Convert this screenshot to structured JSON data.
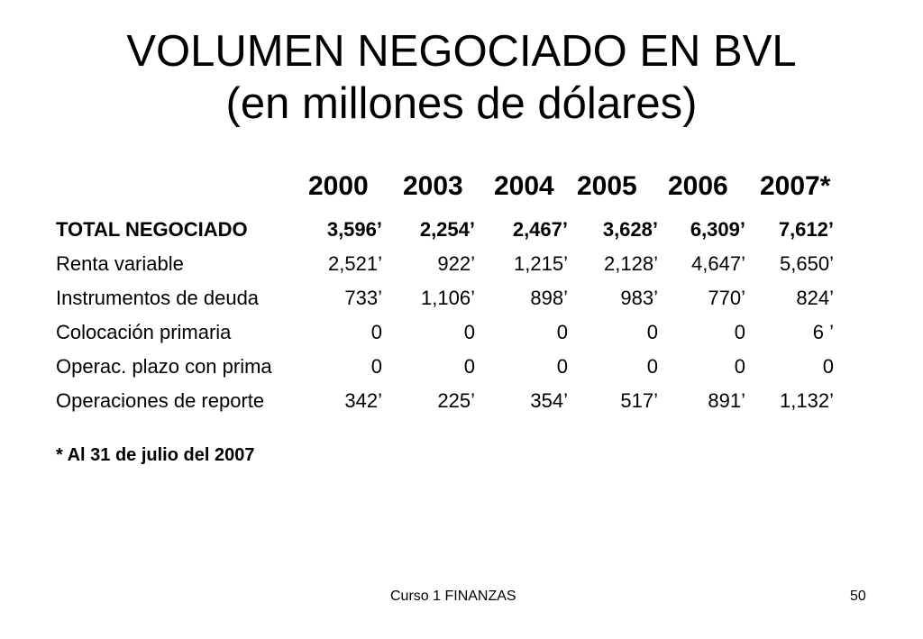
{
  "title": {
    "line1": "VOLUMEN NEGOCIADO EN BVL",
    "line2": "(en millones de dólares)"
  },
  "table": {
    "years": [
      "2000",
      "2003",
      "2004",
      "2005",
      "2006",
      "2007*"
    ],
    "rows": [
      {
        "label": "TOTAL NEGOCIADO",
        "values": [
          "3,596’",
          "2,254’",
          "2,467’",
          "3,628’",
          "6,309’",
          "7,612’"
        ]
      },
      {
        "label": "Renta variable",
        "values": [
          "2,521’",
          "922’",
          "1,215’",
          "2,128’",
          "4,647’",
          "5,650’"
        ]
      },
      {
        "label": "Instrumentos de deuda",
        "values": [
          "733’",
          "1,106’",
          "898’",
          "983’",
          "770’",
          "824’"
        ]
      },
      {
        "label": "Colocación primaria",
        "values": [
          "0",
          "0",
          "0",
          "0",
          "0",
          "6 ’"
        ]
      },
      {
        "label": "Operac. plazo con prima",
        "values": [
          "0",
          "0",
          "0",
          "0",
          "0",
          "0"
        ]
      },
      {
        "label": "Operaciones de reporte",
        "values": [
          "342’",
          "225’",
          "354’",
          "517’",
          "891’",
          "1,132’"
        ]
      }
    ]
  },
  "note": "* Al 31 de julio del 2007",
  "footer": {
    "course": "Curso 1 FINANZAS",
    "page": "50"
  }
}
